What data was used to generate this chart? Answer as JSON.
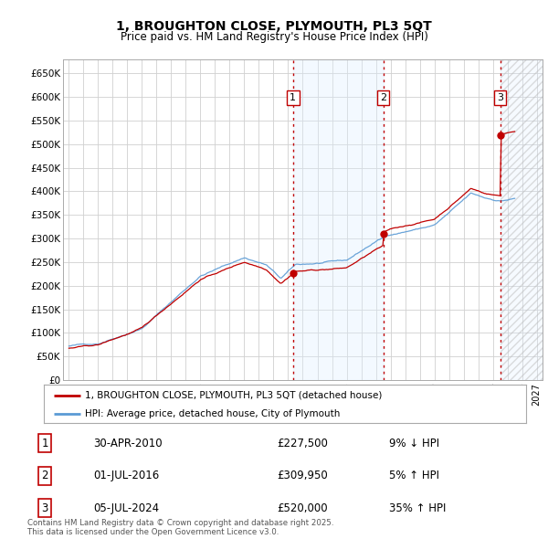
{
  "title_line1": "1, BROUGHTON CLOSE, PLYMOUTH, PL3 5QT",
  "title_line2": "Price paid vs. HM Land Registry's House Price Index (HPI)",
  "ylim": [
    0,
    680000
  ],
  "yticks": [
    0,
    50000,
    100000,
    150000,
    200000,
    250000,
    300000,
    350000,
    400000,
    450000,
    500000,
    550000,
    600000,
    650000
  ],
  "ytick_labels": [
    "£0",
    "£50K",
    "£100K",
    "£150K",
    "£200K",
    "£250K",
    "£300K",
    "£350K",
    "£400K",
    "£450K",
    "£500K",
    "£550K",
    "£600K",
    "£650K"
  ],
  "xlim_start": 1994.6,
  "xlim_end": 2027.4,
  "hpi_color": "#5b9bd5",
  "price_color": "#c00000",
  "vline_color": "#c00000",
  "background_color": "#ffffff",
  "grid_color": "#d0d0d0",
  "chart_bg": "#ffffff",
  "shade_color": "#ddeeff",
  "hatch_color": "#cccccc",
  "legend_entry1": "1, BROUGHTON CLOSE, PLYMOUTH, PL3 5QT (detached house)",
  "legend_entry2": "HPI: Average price, detached house, City of Plymouth",
  "sale1_date": 2010.33,
  "sale1_price": 227500,
  "sale2_date": 2016.5,
  "sale2_price": 309950,
  "sale3_date": 2024.5,
  "sale3_price": 520000,
  "table_row1": [
    "1",
    "30-APR-2010",
    "£227,500",
    "9% ↓ HPI"
  ],
  "table_row2": [
    "2",
    "01-JUL-2016",
    "£309,950",
    "5% ↑ HPI"
  ],
  "table_row3": [
    "3",
    "05-JUL-2024",
    "£520,000",
    "35% ↑ HPI"
  ],
  "footer": "Contains HM Land Registry data © Crown copyright and database right 2025.\nThis data is licensed under the Open Government Licence v3.0."
}
